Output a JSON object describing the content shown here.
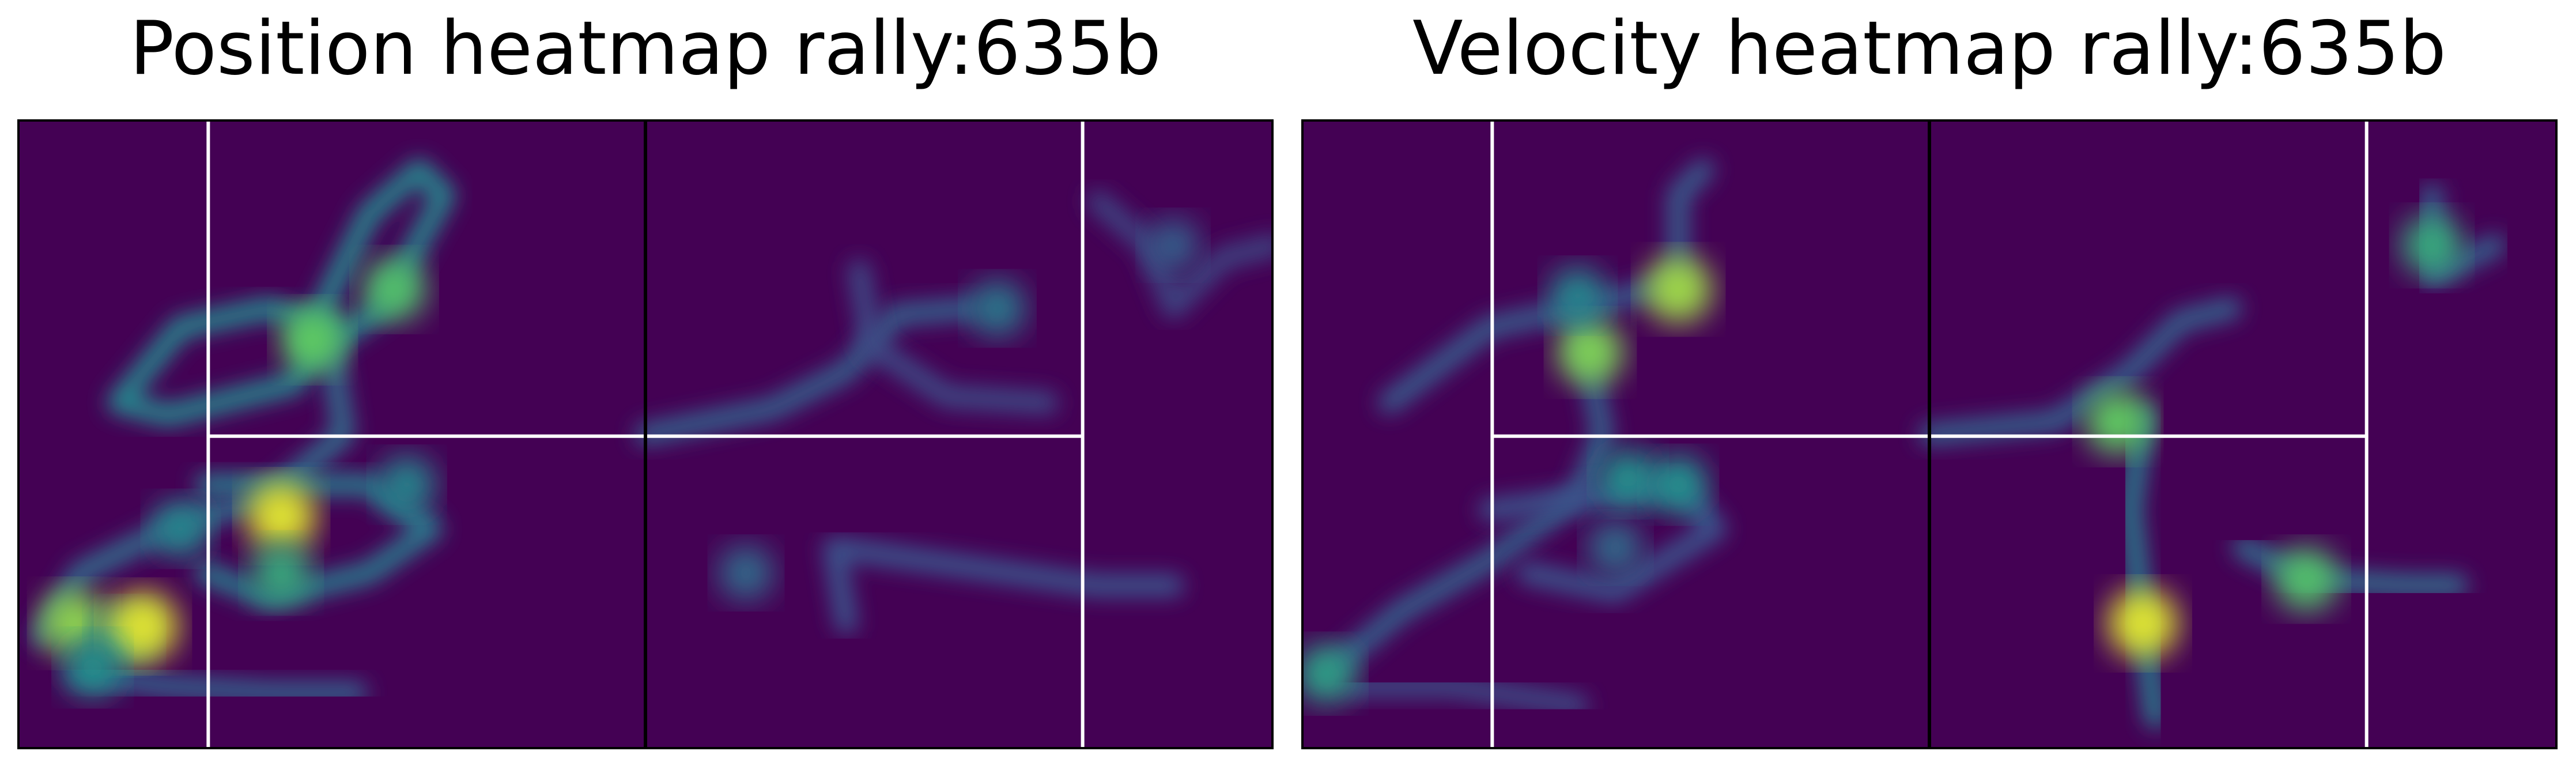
{
  "chart_data": [
    {
      "type": "heatmap",
      "title": "Position heatmap rally:635b",
      "colormap": "viridis",
      "background_color": "#440154",
      "court_line_color": "#ffffff",
      "net_line_color": "#000000",
      "x_range": [
        0,
        1
      ],
      "y_range": [
        0,
        1
      ],
      "grid": false,
      "court_lines": {
        "verticals": [
          0.152,
          0.848
        ],
        "net": 0.5,
        "center_y": 0.503
      },
      "hotspots": [
        {
          "x": 0.045,
          "y": 0.8,
          "intensity": 0.82
        },
        {
          "x": 0.085,
          "y": 0.82,
          "intensity": 0.55
        },
        {
          "x": 0.1,
          "y": 0.805,
          "intensity": 0.95
        },
        {
          "x": 0.06,
          "y": 0.87,
          "intensity": 0.5
        },
        {
          "x": 0.13,
          "y": 0.65,
          "intensity": 0.45
        },
        {
          "x": 0.21,
          "y": 0.63,
          "intensity": 0.95
        },
        {
          "x": 0.21,
          "y": 0.72,
          "intensity": 0.6
        },
        {
          "x": 0.235,
          "y": 0.35,
          "intensity": 0.75
        },
        {
          "x": 0.3,
          "y": 0.27,
          "intensity": 0.7
        },
        {
          "x": 0.31,
          "y": 0.58,
          "intensity": 0.45
        },
        {
          "x": 0.78,
          "y": 0.3,
          "intensity": 0.4
        },
        {
          "x": 0.58,
          "y": 0.72,
          "intensity": 0.35
        },
        {
          "x": 0.92,
          "y": 0.2,
          "intensity": 0.3
        }
      ],
      "paths": [
        {
          "intensity": 0.45,
          "points": [
            [
              0.08,
              0.45
            ],
            [
              0.13,
              0.33
            ],
            [
              0.2,
              0.3
            ],
            [
              0.25,
              0.33
            ],
            [
              0.22,
              0.42
            ],
            [
              0.12,
              0.47
            ],
            [
              0.08,
              0.45
            ]
          ]
        },
        {
          "intensity": 0.45,
          "points": [
            [
              0.23,
              0.35
            ],
            [
              0.28,
              0.15
            ],
            [
              0.32,
              0.08
            ],
            [
              0.34,
              0.12
            ],
            [
              0.29,
              0.3
            ],
            [
              0.24,
              0.37
            ]
          ]
        },
        {
          "intensity": 0.35,
          "points": [
            [
              0.25,
              0.37
            ],
            [
              0.26,
              0.5
            ],
            [
              0.2,
              0.6
            ],
            [
              0.12,
              0.65
            ],
            [
              0.05,
              0.72
            ],
            [
              0.02,
              0.82
            ]
          ]
        },
        {
          "intensity": 0.4,
          "points": [
            [
              0.15,
              0.58
            ],
            [
              0.28,
              0.58
            ],
            [
              0.33,
              0.65
            ],
            [
              0.28,
              0.72
            ],
            [
              0.2,
              0.76
            ],
            [
              0.15,
              0.72
            ]
          ]
        },
        {
          "intensity": 0.3,
          "points": [
            [
              0.05,
              0.88
            ],
            [
              0.12,
              0.9
            ],
            [
              0.2,
              0.91
            ],
            [
              0.27,
              0.91
            ]
          ]
        },
        {
          "intensity": 0.3,
          "points": [
            [
              0.5,
              0.5
            ],
            [
              0.6,
              0.46
            ],
            [
              0.66,
              0.4
            ],
            [
              0.7,
              0.31
            ],
            [
              0.76,
              0.3
            ]
          ]
        },
        {
          "intensity": 0.22,
          "points": [
            [
              0.67,
              0.24
            ],
            [
              0.68,
              0.36
            ],
            [
              0.74,
              0.44
            ],
            [
              0.82,
              0.45
            ]
          ]
        },
        {
          "intensity": 0.25,
          "points": [
            [
              0.66,
              0.8
            ],
            [
              0.65,
              0.68
            ],
            [
              0.72,
              0.7
            ],
            [
              0.86,
              0.74
            ],
            [
              0.92,
              0.74
            ]
          ]
        },
        {
          "intensity": 0.2,
          "points": [
            [
              0.86,
              0.13
            ],
            [
              0.9,
              0.2
            ],
            [
              0.92,
              0.3
            ],
            [
              0.96,
              0.22
            ],
            [
              1.0,
              0.2
            ]
          ]
        }
      ]
    },
    {
      "type": "heatmap",
      "title": "Velocity heatmap rally:635b",
      "colormap": "viridis",
      "background_color": "#440154",
      "court_line_color": "#ffffff",
      "net_line_color": "#000000",
      "x_range": [
        0,
        1
      ],
      "y_range": [
        0,
        1
      ],
      "grid": false,
      "court_lines": {
        "verticals": [
          0.152,
          0.848
        ],
        "net": 0.5,
        "center_y": 0.503
      },
      "hotspots": [
        {
          "x": 0.3,
          "y": 0.27,
          "intensity": 0.85
        },
        {
          "x": 0.23,
          "y": 0.37,
          "intensity": 0.8
        },
        {
          "x": 0.22,
          "y": 0.28,
          "intensity": 0.45
        },
        {
          "x": 0.26,
          "y": 0.57,
          "intensity": 0.5
        },
        {
          "x": 0.3,
          "y": 0.58,
          "intensity": 0.5
        },
        {
          "x": 0.02,
          "y": 0.88,
          "intensity": 0.55
        },
        {
          "x": 0.65,
          "y": 0.48,
          "intensity": 0.75
        },
        {
          "x": 0.67,
          "y": 0.8,
          "intensity": 0.95
        },
        {
          "x": 0.8,
          "y": 0.73,
          "intensity": 0.7
        },
        {
          "x": 0.9,
          "y": 0.2,
          "intensity": 0.6
        },
        {
          "x": 0.25,
          "y": 0.68,
          "intensity": 0.35
        }
      ],
      "paths": [
        {
          "intensity": 0.28,
          "points": [
            [
              0.07,
              0.45
            ],
            [
              0.15,
              0.33
            ],
            [
              0.22,
              0.3
            ],
            [
              0.3,
              0.26
            ],
            [
              0.3,
              0.12
            ],
            [
              0.32,
              0.08
            ]
          ]
        },
        {
          "intensity": 0.3,
          "points": [
            [
              0.22,
              0.3
            ],
            [
              0.23,
              0.4
            ],
            [
              0.24,
              0.5
            ],
            [
              0.22,
              0.6
            ],
            [
              0.15,
              0.7
            ],
            [
              0.08,
              0.78
            ],
            [
              0.02,
              0.88
            ]
          ]
        },
        {
          "intensity": 0.25,
          "points": [
            [
              0.15,
              0.62
            ],
            [
              0.3,
              0.58
            ],
            [
              0.33,
              0.65
            ],
            [
              0.25,
              0.75
            ],
            [
              0.18,
              0.72
            ]
          ]
        },
        {
          "intensity": 0.22,
          "points": [
            [
              0.04,
              0.9
            ],
            [
              0.12,
              0.9
            ],
            [
              0.22,
              0.93
            ]
          ]
        },
        {
          "intensity": 0.3,
          "points": [
            [
              0.5,
              0.5
            ],
            [
              0.6,
              0.48
            ],
            [
              0.66,
              0.4
            ],
            [
              0.7,
              0.32
            ],
            [
              0.74,
              0.3
            ]
          ]
        },
        {
          "intensity": 0.4,
          "points": [
            [
              0.67,
              0.47
            ],
            [
              0.66,
              0.62
            ],
            [
              0.67,
              0.8
            ],
            [
              0.68,
              0.95
            ]
          ]
        },
        {
          "intensity": 0.35,
          "points": [
            [
              0.75,
              0.68
            ],
            [
              0.8,
              0.73
            ],
            [
              0.88,
              0.74
            ],
            [
              0.92,
              0.74
            ]
          ]
        },
        {
          "intensity": 0.3,
          "points": [
            [
              0.9,
              0.12
            ],
            [
              0.9,
              0.25
            ],
            [
              0.95,
              0.2
            ]
          ]
        }
      ]
    }
  ]
}
